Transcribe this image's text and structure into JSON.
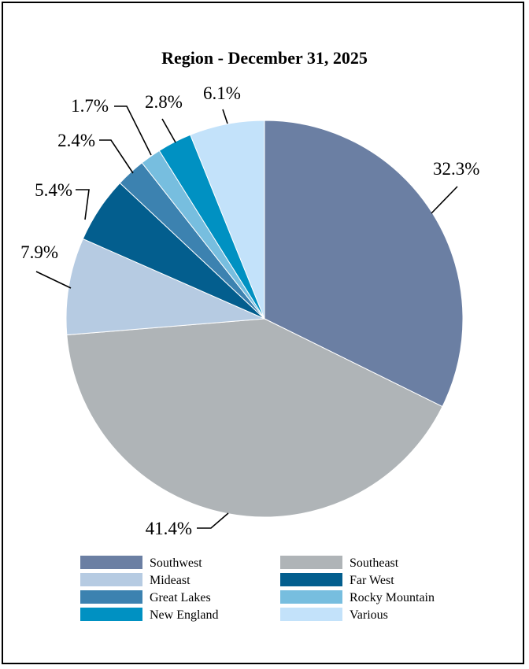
{
  "chart_data": {
    "type": "pie",
    "title": "Region - December 31, 2025",
    "legend_position": "bottom",
    "slices": [
      {
        "label": "Southwest",
        "value": 32.3,
        "display": "32.3%",
        "color": "#6b7fa3"
      },
      {
        "label": "Southeast",
        "value": 41.4,
        "display": "41.4%",
        "color": "#afb4b7"
      },
      {
        "label": "Mideast",
        "value": 7.9,
        "display": "7.9%",
        "color": "#b6cbe2"
      },
      {
        "label": "Far West",
        "value": 5.4,
        "display": "5.4%",
        "color": "#035e8e"
      },
      {
        "label": "Great Lakes",
        "value": 2.4,
        "display": "2.4%",
        "color": "#3c82b0"
      },
      {
        "label": "Rocky Mountain",
        "value": 1.7,
        "display": "1.7%",
        "color": "#77bedf"
      },
      {
        "label": "New England",
        "value": 2.8,
        "display": "2.8%",
        "color": "#0091c2"
      },
      {
        "label": "Various",
        "value": 6.1,
        "display": "6.1%",
        "color": "#c3e2fa"
      }
    ]
  }
}
